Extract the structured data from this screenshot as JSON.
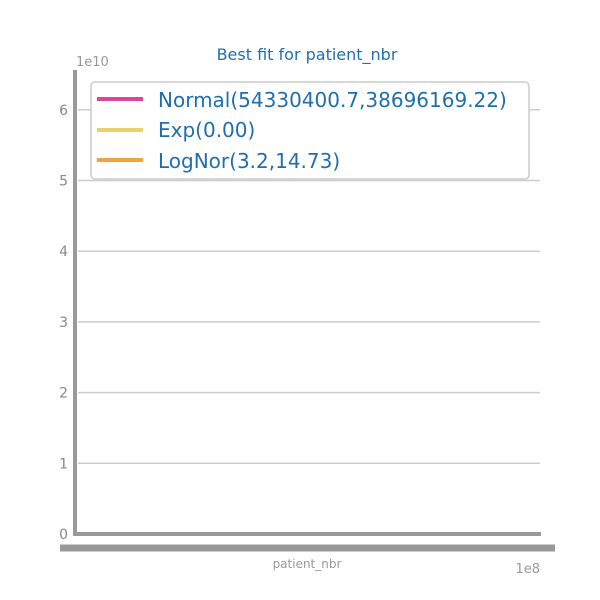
{
  "chart_data": {
    "type": "line",
    "title": "Best fit for patient_nbr",
    "xlabel": "patient_nbr",
    "ylabel": "",
    "x_offset_label": "1e8",
    "y_offset_label": "1e10",
    "ylim": [
      0,
      6.5
    ],
    "y_ticks": [
      0,
      1,
      2,
      3,
      4,
      5,
      6
    ],
    "grid": "horizontal",
    "legend_placement": "top",
    "series": [
      {
        "name": "Normal(54330400.7,38696169.22)",
        "color": "#d6489c",
        "values": []
      },
      {
        "name": "Exp(0.00)",
        "color": "#e8d26b",
        "values": []
      },
      {
        "name": "LogNor(3.2,14.73)",
        "color": "#efa443",
        "values": []
      }
    ],
    "colors": {
      "axis": "#999999",
      "grid": "#cccccc",
      "title": "#1f6fb0",
      "ticks": "#888888"
    }
  }
}
